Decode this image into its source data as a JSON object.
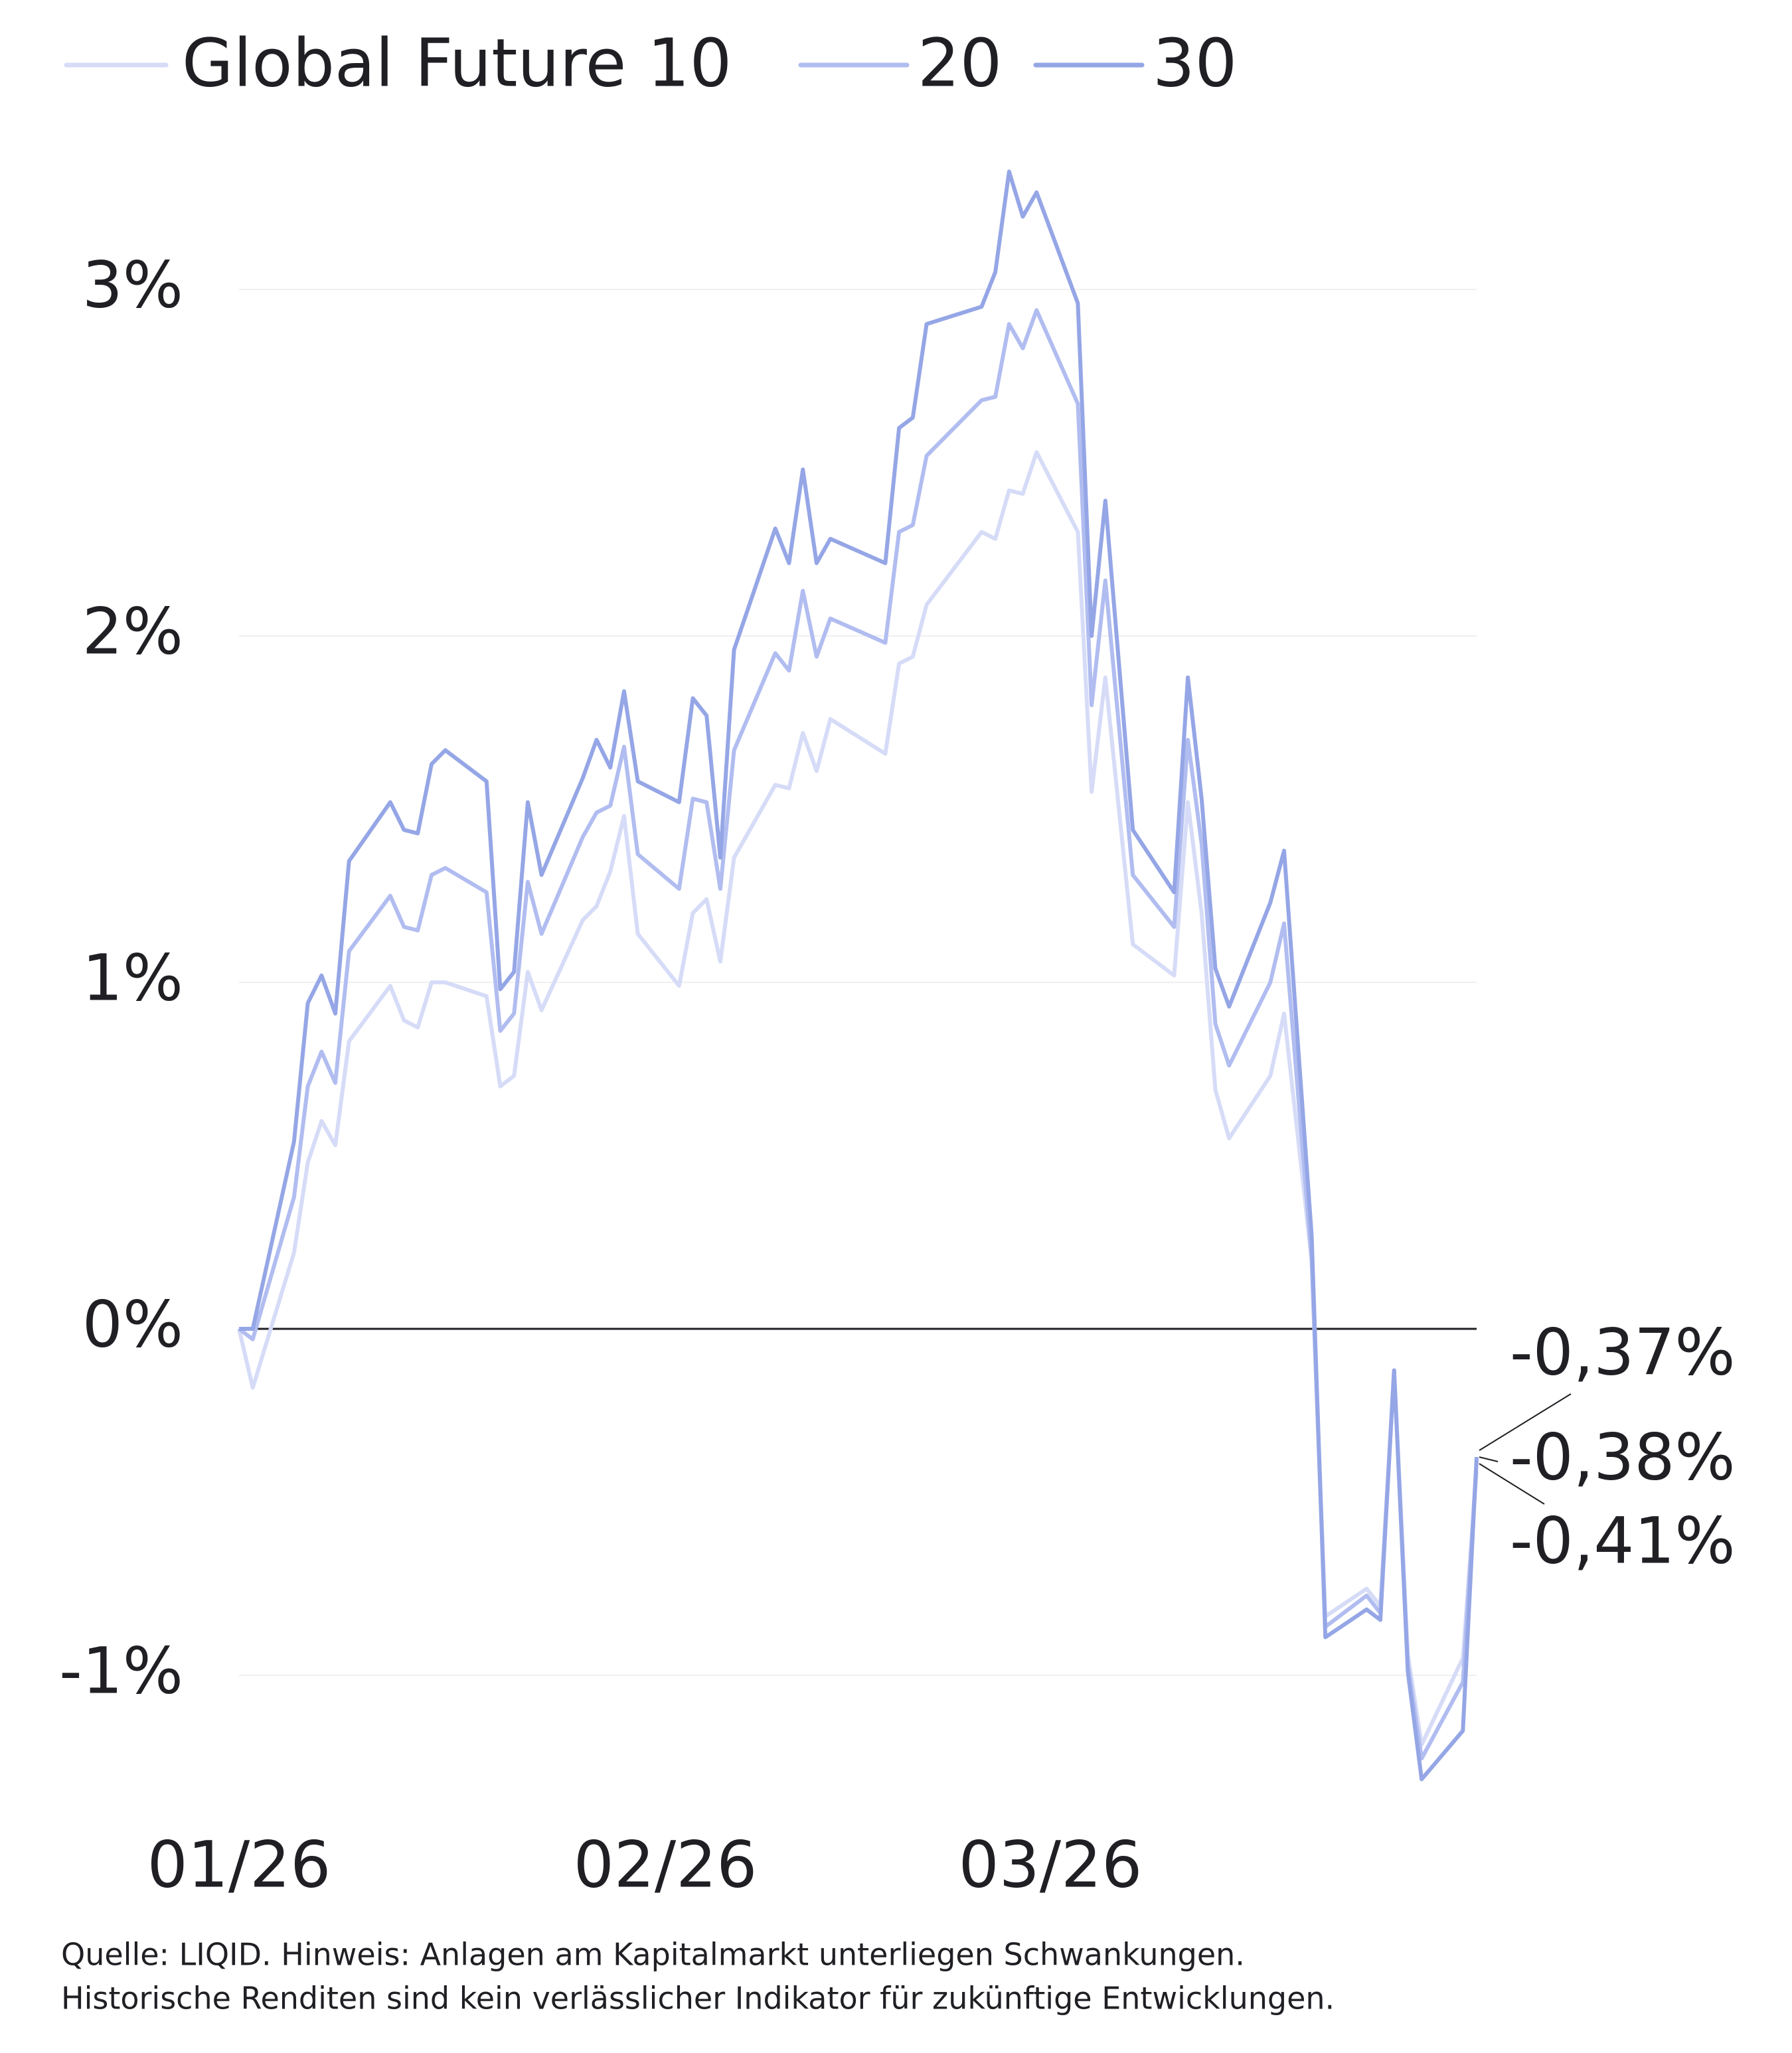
{
  "chart_data": {
    "type": "line",
    "x": [
      0,
      1,
      4,
      5,
      6,
      7,
      8,
      11,
      12,
      13,
      14,
      15,
      18,
      19,
      20,
      21,
      22,
      25,
      26,
      27,
      28,
      29,
      32,
      33,
      34,
      35,
      36,
      39,
      40,
      41,
      42,
      43,
      47,
      48,
      49,
      50,
      54,
      55,
      56,
      57,
      58,
      61,
      62,
      63,
      65,
      68,
      69,
      70,
      71,
      72,
      75,
      76,
      78,
      79,
      82,
      83,
      84,
      85,
      86,
      89,
      90
    ],
    "xlim": [
      0,
      90
    ],
    "xticks": [
      {
        "value": 0,
        "label": "01/26"
      },
      {
        "value": 31,
        "label": "02/26"
      },
      {
        "value": 59,
        "label": "03/26"
      }
    ],
    "ylim": [
      -1.3,
      3.4
    ],
    "yticks": [
      {
        "value": -1,
        "label": "-1%"
      },
      {
        "value": 0,
        "label": "0%"
      },
      {
        "value": 1,
        "label": "1%"
      },
      {
        "value": 2,
        "label": "2%"
      },
      {
        "value": 3,
        "label": "3%"
      }
    ],
    "grid": true,
    "series": [
      {
        "name": "Global Future 10",
        "color": "#d6dcf7",
        "values": [
          0,
          -0.17,
          0.22,
          0.48,
          0.6,
          0.53,
          0.83,
          0.99,
          0.89,
          0.87,
          1.0,
          1.0,
          0.96,
          0.7,
          0.73,
          1.03,
          0.92,
          1.18,
          1.22,
          1.32,
          1.48,
          1.14,
          0.99,
          1.2,
          1.24,
          1.06,
          1.36,
          1.57,
          1.56,
          1.72,
          1.61,
          1.76,
          1.66,
          1.92,
          1.94,
          2.09,
          2.3,
          2.28,
          2.42,
          2.41,
          2.53,
          2.3,
          1.55,
          1.88,
          1.11,
          1.02,
          1.52,
          1.2,
          0.69,
          0.55,
          0.73,
          0.91,
          0.2,
          -0.83,
          -0.75,
          -0.8,
          -0.12,
          -0.94,
          -1.2,
          -0.95,
          -0.41
        ]
      },
      {
        "name": "20",
        "color": "#b1bdf0",
        "values": [
          0,
          -0.03,
          0.38,
          0.7,
          0.8,
          0.71,
          1.09,
          1.25,
          1.16,
          1.15,
          1.31,
          1.33,
          1.26,
          0.86,
          0.91,
          1.29,
          1.14,
          1.42,
          1.49,
          1.51,
          1.68,
          1.37,
          1.27,
          1.53,
          1.52,
          1.27,
          1.67,
          1.95,
          1.9,
          2.13,
          1.94,
          2.05,
          1.98,
          2.3,
          2.32,
          2.52,
          2.68,
          2.69,
          2.9,
          2.83,
          2.94,
          2.67,
          1.8,
          2.16,
          1.31,
          1.16,
          1.7,
          1.4,
          0.88,
          0.76,
          1.0,
          1.17,
          0.2,
          -0.86,
          -0.77,
          -0.82,
          -0.12,
          -0.97,
          -1.24,
          -1.02,
          -0.38
        ]
      },
      {
        "name": "30",
        "color": "#95a6e6",
        "values": [
          0,
          0,
          0.54,
          0.94,
          1.02,
          0.91,
          1.35,
          1.52,
          1.44,
          1.43,
          1.63,
          1.67,
          1.58,
          0.98,
          1.03,
          1.52,
          1.31,
          1.59,
          1.7,
          1.62,
          1.84,
          1.58,
          1.52,
          1.82,
          1.77,
          1.36,
          1.96,
          2.31,
          2.21,
          2.48,
          2.21,
          2.28,
          2.21,
          2.6,
          2.63,
          2.9,
          2.95,
          3.05,
          3.34,
          3.21,
          3.28,
          2.96,
          2.0,
          2.39,
          1.44,
          1.26,
          1.88,
          1.53,
          1.04,
          0.93,
          1.23,
          1.38,
          0.27,
          -0.89,
          -0.81,
          -0.84,
          -0.12,
          -0.99,
          -1.3,
          -1.16,
          -0.37
        ]
      }
    ],
    "annotations": [
      "-0,37%",
      "-0,38%",
      "-0,41%"
    ],
    "source": [
      "Quelle: LIQID. Hinweis: Anlagen am Kapitalmarkt unterliegen Schwankungen.",
      "Historische Renditen sind kein verlässlicher Indikator für zukünftige Entwicklungen."
    ]
  }
}
